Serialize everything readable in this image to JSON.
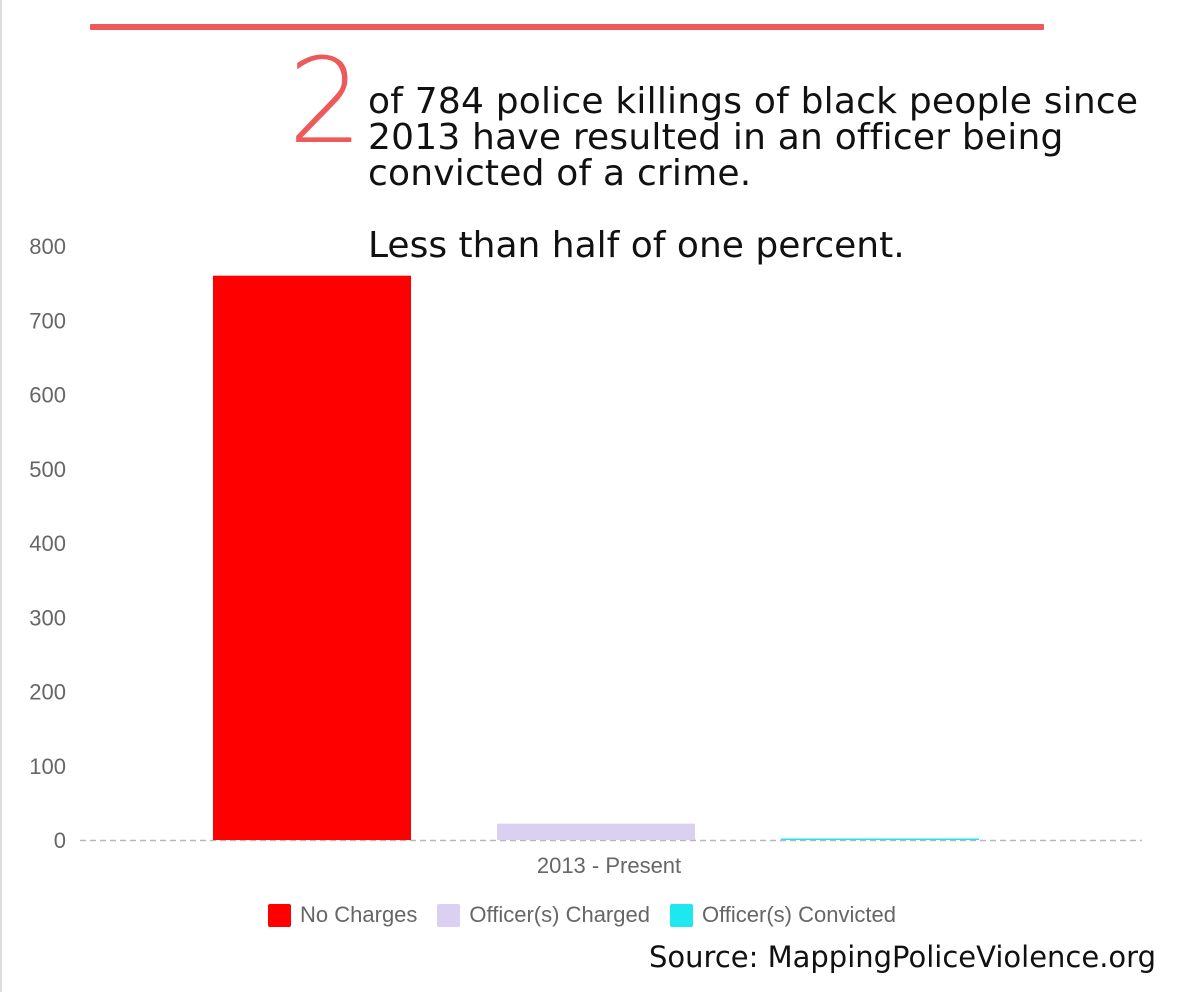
{
  "headline": {
    "number": "2",
    "line1": "of 784 police killings of black people since",
    "line2": "2013 have resulted in an officer being",
    "line3": "convicted of a crime.",
    "subline": "Less than half of one percent."
  },
  "source": "Source: MappingPoliceViolence.org",
  "colors": {
    "accent": "#ee5a5a",
    "no_charges": "#ff0000",
    "charged": "#d9d0f2",
    "convicted": "#1ee8ef"
  },
  "chart_data": {
    "type": "bar",
    "categories": [
      "2013 - Present"
    ],
    "series": [
      {
        "name": "No Charges",
        "values": [
          760
        ]
      },
      {
        "name": "Officer(s) Charged",
        "values": [
          22
        ]
      },
      {
        "name": "Officer(s) Convicted",
        "values": [
          2
        ]
      }
    ],
    "title": "",
    "xlabel": "",
    "ylabel": "",
    "ylim": [
      0,
      800
    ],
    "yticks": [
      "0",
      "100",
      "200",
      "300",
      "400",
      "500",
      "600",
      "700",
      "800"
    ],
    "grid": false,
    "baseline": "dashed",
    "legend": "bottom"
  }
}
